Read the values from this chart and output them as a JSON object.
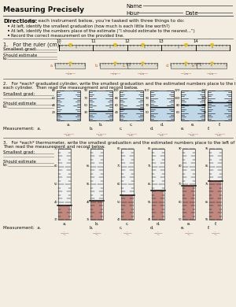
{
  "title": "Measuring Precisely",
  "name_label": "Name",
  "hour_label": "Hour",
  "date_label": "Date",
  "directions_title": "Directions:",
  "directions_text": "For each instrument below, you’re tasked with three things to do:",
  "bullets": [
    "At left, identify the smallest graduation (how much is each little line worth?)",
    "At left, identify the numbers place of the estimate (“I should estimate to the nearest...”)",
    "Record the correct measurement on the provided line."
  ],
  "section1_label": "1.   For the ruler (cm):",
  "section2_label": "2.   For *each* graduated cylinder, write the smallest graduation and the estimated numbers place to the left of",
  "section2_label2": "each cylinder.  Then read the measurement and record below.",
  "section3_label": "3.   For *each* thermometer, write the smallest graduation and the estimated numbers place to the left of each.",
  "section3_label2": "Then read the measurement and record below.",
  "smallest_grad": "Smallest grad:",
  "should_estimate": "Should estimate",
  "to_label": "to:",
  "measurement": "Measurement:  a.",
  "measurement2": "Measurement:  a.",
  "ruler_major": [
    10,
    11,
    12,
    13,
    14
  ],
  "cyl_letters": [
    "a.",
    "b.",
    "c.",
    "d.",
    "e.",
    "f."
  ],
  "thermo_letters": [
    "a.",
    "b.",
    "c.",
    "d.",
    "e.",
    "f."
  ],
  "bg_color": "#f2ede0",
  "line_color": "#555555",
  "ruler_fill": "#e0ddd0",
  "cyl_fill": "#d8e8f0",
  "thermo_fill": "#f0f0ee",
  "black": "#111111",
  "gray": "#777777",
  "orange": "#d4600a",
  "pink": "#cc4455",
  "yellow": "#f0c000",
  "dark_red": "#993322"
}
